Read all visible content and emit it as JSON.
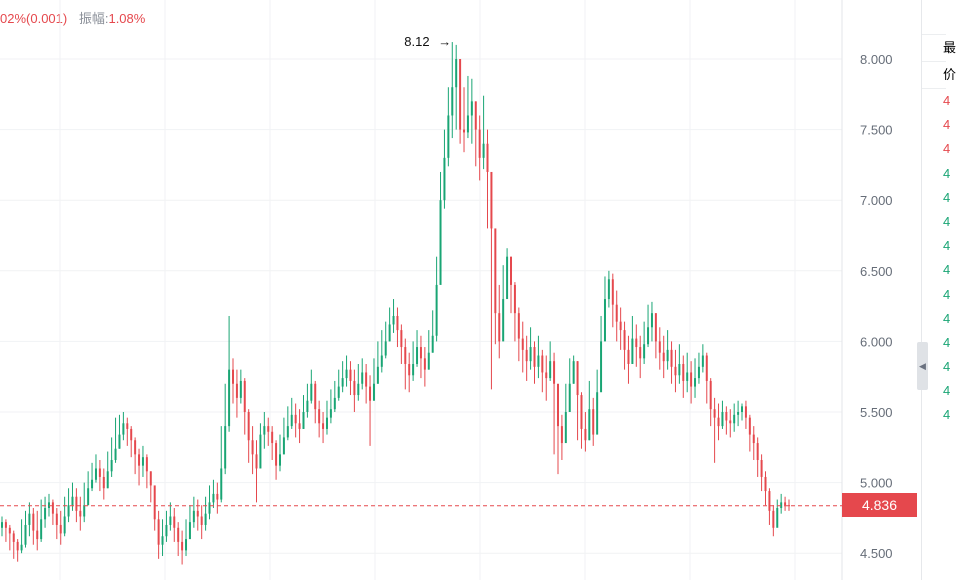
{
  "header": {
    "change_text": "02%(0.001)",
    "amplitude_label": "振幅:",
    "amplitude_value": "1.08%"
  },
  "colors": {
    "up": "#e5484d",
    "down": "#19a574",
    "grid": "#f1f2f4",
    "axis_text": "#666d78"
  },
  "current_price": {
    "label": "4.836",
    "value": 4.836
  },
  "right_panel": {
    "rows": [
      "最",
      "价"
    ],
    "ticks": [
      "4",
      "4",
      "4",
      "4",
      "4",
      "4",
      "4",
      "4",
      "4",
      "4",
      "4",
      "4",
      "4",
      "4"
    ]
  },
  "icons": {
    "collapse": "chevron-left-icon"
  },
  "chart_data": {
    "type": "candlestick",
    "title": "",
    "xlabel": "",
    "ylabel": "",
    "ylim": [
      4.4,
      8.25
    ],
    "yticks": [
      "8.000",
      "7.500",
      "7.000",
      "6.500",
      "6.000",
      "5.500",
      "5.000",
      "4.500"
    ],
    "ytick_values": [
      8.0,
      7.5,
      7.0,
      6.5,
      6.0,
      5.5,
      5.0,
      4.5
    ],
    "grid": true,
    "annotations": [
      {
        "text": "8.12",
        "value": 8.12,
        "marker": "max-high"
      }
    ],
    "series": [
      {
        "close": [
          4.72,
          4.68,
          4.64,
          4.58,
          4.52,
          4.56,
          4.7,
          4.78,
          4.66,
          4.6,
          4.74,
          4.82,
          4.86,
          4.78,
          4.7,
          4.64,
          4.76,
          4.84,
          4.9,
          4.8,
          4.76,
          4.84,
          4.96,
          5.02,
          5.1,
          5.04,
          4.96,
          5.08,
          5.16,
          5.24,
          5.34,
          5.42,
          5.38,
          5.3,
          5.2,
          5.12,
          5.18,
          5.08,
          4.98,
          4.74,
          4.56,
          4.62,
          4.7,
          4.76,
          4.68,
          4.58,
          4.52,
          4.6,
          4.72,
          4.8,
          4.76,
          4.7,
          4.78,
          4.86,
          4.92,
          4.88,
          5.1,
          5.4,
          5.8,
          5.7,
          5.6,
          5.72,
          5.5,
          5.3,
          5.2,
          5.1,
          5.34,
          5.4,
          5.36,
          5.28,
          5.12,
          5.2,
          5.32,
          5.4,
          5.48,
          5.42,
          5.38,
          5.5,
          5.58,
          5.7,
          5.52,
          5.42,
          5.38,
          5.46,
          5.52,
          5.6,
          5.68,
          5.74,
          5.8,
          5.72,
          5.62,
          5.7,
          5.78,
          5.68,
          5.58,
          5.7,
          5.82,
          5.9,
          6.0,
          6.12,
          6.18,
          6.08,
          5.96,
          5.84,
          5.76,
          5.84,
          5.96,
          5.88,
          5.8,
          5.92,
          6.04,
          6.4,
          7.0,
          7.3,
          7.6,
          7.8,
          8.0,
          7.5,
          7.48,
          7.6,
          7.7,
          7.5,
          7.3,
          7.4,
          7.2,
          6.8,
          6.2,
          6.0,
          6.3,
          6.6,
          6.4,
          6.2,
          6.02,
          5.94,
          5.86,
          5.96,
          5.82,
          5.9,
          5.78,
          5.74,
          5.86,
          5.7,
          5.4,
          5.28,
          5.5,
          5.7,
          5.86,
          5.62,
          5.38,
          5.3,
          5.52,
          5.34,
          5.64,
          6.0,
          6.3,
          6.44,
          6.26,
          6.14,
          6.08,
          5.94,
          5.84,
          6.02,
          5.96,
          5.88,
          5.98,
          6.1,
          6.2,
          6.0,
          5.92,
          5.86,
          5.94,
          5.82,
          5.76,
          5.84,
          5.72,
          5.78,
          5.68,
          5.74,
          5.82,
          5.9,
          5.72,
          5.52,
          5.46,
          5.4,
          5.5,
          5.44,
          5.42,
          5.48,
          5.5,
          5.54,
          5.46,
          5.34,
          5.28,
          5.16,
          5.04,
          4.94,
          4.8,
          4.68,
          4.82,
          4.86,
          4.84,
          4.836
        ],
        "high": [
          4.76,
          4.74,
          4.7,
          4.66,
          4.6,
          4.74,
          4.8,
          4.86,
          4.82,
          4.8,
          4.88,
          4.9,
          4.92,
          4.88,
          4.82,
          4.8,
          4.9,
          4.96,
          5.0,
          4.96,
          4.9,
          5.0,
          5.08,
          5.14,
          5.2,
          5.16,
          5.1,
          5.22,
          5.32,
          5.46,
          5.48,
          5.5,
          5.46,
          5.4,
          5.32,
          5.24,
          5.26,
          5.2,
          5.08,
          4.9,
          4.8,
          4.74,
          4.8,
          4.86,
          4.82,
          4.72,
          4.66,
          4.74,
          4.84,
          4.9,
          4.88,
          4.84,
          4.9,
          4.98,
          5.02,
          5.0,
          5.4,
          5.7,
          6.18,
          5.88,
          5.8,
          5.8,
          5.74,
          5.52,
          5.4,
          5.3,
          5.42,
          5.5,
          5.46,
          5.4,
          5.3,
          5.34,
          5.46,
          5.54,
          5.6,
          5.56,
          5.52,
          5.62,
          5.7,
          5.8,
          5.72,
          5.58,
          5.5,
          5.58,
          5.66,
          5.72,
          5.8,
          5.86,
          5.9,
          5.86,
          5.8,
          5.84,
          5.88,
          5.84,
          5.76,
          5.88,
          6.0,
          6.08,
          6.14,
          6.24,
          6.3,
          6.24,
          6.12,
          6.02,
          5.92,
          6.0,
          6.08,
          6.04,
          5.96,
          6.08,
          6.22,
          6.6,
          7.2,
          7.5,
          7.8,
          8.12,
          8.1,
          7.9,
          7.8,
          7.88,
          7.86,
          7.7,
          7.6,
          7.74,
          7.5,
          7.2,
          6.58,
          6.4,
          6.54,
          6.66,
          6.6,
          6.42,
          6.24,
          6.14,
          6.04,
          6.1,
          6.0,
          6.04,
          5.94,
          5.9,
          6.0,
          5.92,
          5.66,
          5.48,
          5.7,
          5.88,
          5.9,
          5.86,
          5.64,
          5.5,
          5.72,
          5.6,
          5.8,
          6.18,
          6.46,
          6.5,
          6.48,
          6.36,
          6.24,
          6.14,
          6.04,
          6.18,
          6.12,
          6.04,
          6.14,
          6.26,
          6.28,
          6.2,
          6.1,
          6.04,
          6.08,
          6.0,
          5.94,
          5.98,
          5.9,
          5.92,
          5.86,
          5.88,
          5.92,
          5.98,
          5.92,
          5.74,
          5.6,
          5.56,
          5.58,
          5.54,
          5.52,
          5.56,
          5.58,
          5.56,
          5.58,
          5.48,
          5.4,
          5.32,
          5.2,
          5.08,
          4.96,
          4.84,
          4.88,
          4.92,
          4.9,
          4.88
        ],
        "low": [
          4.62,
          4.58,
          4.52,
          4.46,
          4.44,
          4.5,
          4.54,
          4.62,
          4.56,
          4.52,
          4.58,
          4.68,
          4.76,
          4.7,
          4.6,
          4.56,
          4.62,
          4.72,
          4.8,
          4.72,
          4.66,
          4.72,
          4.84,
          4.94,
          5.0,
          4.94,
          4.88,
          4.96,
          5.04,
          5.14,
          5.24,
          5.3,
          5.26,
          5.18,
          5.06,
          4.98,
          5.04,
          4.96,
          4.86,
          4.66,
          4.46,
          4.48,
          4.58,
          4.66,
          4.58,
          4.48,
          4.42,
          4.48,
          4.6,
          4.68,
          4.66,
          4.6,
          4.66,
          4.74,
          4.82,
          4.78,
          4.86,
          5.06,
          5.36,
          5.56,
          5.46,
          5.56,
          5.34,
          5.14,
          5.06,
          4.86,
          5.16,
          5.24,
          5.26,
          5.16,
          5.02,
          5.08,
          5.2,
          5.3,
          5.38,
          5.32,
          5.28,
          5.38,
          5.46,
          5.56,
          5.42,
          5.32,
          5.28,
          5.34,
          5.42,
          5.5,
          5.58,
          5.64,
          5.68,
          5.62,
          5.5,
          5.58,
          5.66,
          5.56,
          5.26,
          5.58,
          5.7,
          5.78,
          5.88,
          6.0,
          6.06,
          5.96,
          5.84,
          5.66,
          5.64,
          5.72,
          5.82,
          5.74,
          5.68,
          5.8,
          5.92,
          6.0,
          6.62,
          6.94,
          7.24,
          7.44,
          7.5,
          7.4,
          7.34,
          7.44,
          7.4,
          7.24,
          7.14,
          7.22,
          6.8,
          5.66,
          5.98,
          5.88,
          6.04,
          6.3,
          6.2,
          6.0,
          5.86,
          5.78,
          5.72,
          5.8,
          5.7,
          5.74,
          5.64,
          5.58,
          5.72,
          5.2,
          5.06,
          5.16,
          5.34,
          5.56,
          5.7,
          5.3,
          5.24,
          5.22,
          5.3,
          5.26,
          5.4,
          5.8,
          6.04,
          6.24,
          6.1,
          6.0,
          5.94,
          5.8,
          5.7,
          5.88,
          5.82,
          5.74,
          5.84,
          5.96,
          6.0,
          5.88,
          5.8,
          5.74,
          5.8,
          5.7,
          5.64,
          5.7,
          5.6,
          5.64,
          5.56,
          5.6,
          5.7,
          5.78,
          5.56,
          5.4,
          5.14,
          5.3,
          5.38,
          5.34,
          5.32,
          5.36,
          5.4,
          5.44,
          5.38,
          5.22,
          5.16,
          5.04,
          4.94,
          4.84,
          4.7,
          4.62,
          4.7,
          4.78,
          4.8,
          4.8
        ],
        "open_offset_sign": "derived"
      }
    ]
  }
}
